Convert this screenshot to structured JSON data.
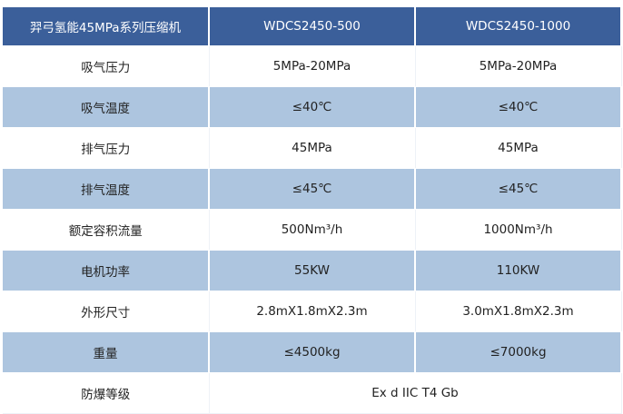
{
  "header": [
    "羿弓氢能45MPa系列压缩机",
    "WDCS2450-500",
    "WDCS2450-1000"
  ],
  "rows": [
    [
      "吸气压力",
      "5MPa-20MPa",
      "5MPa-20MPa"
    ],
    [
      "吸气温度",
      "≤40℃",
      "≤40℃"
    ],
    [
      "排气压力",
      "45MPa",
      "45MPa"
    ],
    [
      "排气温度",
      "≤45℃",
      "≤45℃"
    ],
    [
      "额定容积流量",
      "500Nm³/h",
      "1000Nm³/h"
    ],
    [
      "电机功率",
      "55KW",
      "110KW"
    ],
    [
      "外形尺寸",
      "2.8mX1.8mX2.3m",
      "3.0mX1.8mX2.3m"
    ],
    [
      "重量",
      "≤4500kg",
      "≤7000kg"
    ]
  ],
  "last_row": [
    "防爆等级",
    "Ex d IIC T4 Gb"
  ],
  "colors": {
    "header": "#3b5f9a",
    "alt_row": "#adc5df"
  }
}
